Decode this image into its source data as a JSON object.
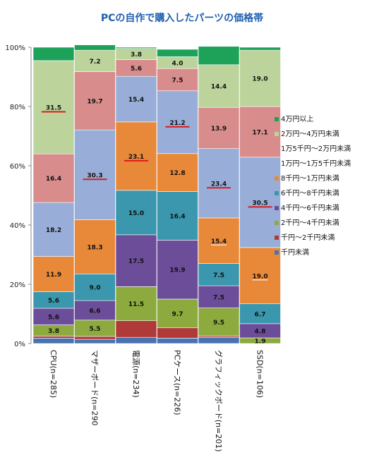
{
  "chart_data": {
    "type": "bar",
    "stacked": true,
    "percent": true,
    "title": "PCの自作で購入したパーツの価格帯",
    "ylim": [
      0,
      100
    ],
    "yticks": [
      "0%",
      "20%",
      "40%",
      "60%",
      "80%",
      "100%"
    ],
    "grid": false,
    "legend_position": "right",
    "categories": [
      "CPU(n=285)",
      "マザーボード(n=290",
      "電源(n=234)",
      "PCケース(n=226)",
      "グラフィックボード(n=201)",
      "SSD(n=106)"
    ],
    "series": [
      {
        "name": "千円未満",
        "color": "#4a72b0",
        "values": [
          1.8,
          1.4,
          2.1,
          1.8,
          2.0,
          0.0
        ]
      },
      {
        "name": "千円～2千円未満",
        "color": "#b03a38",
        "values": [
          0.7,
          1.0,
          5.6,
          3.5,
          0.5,
          0.0
        ]
      },
      {
        "name": "2千円～4千円未満",
        "color": "#8caa3e",
        "values": [
          3.8,
          5.5,
          11.5,
          9.7,
          9.5,
          1.9
        ]
      },
      {
        "name": "4千円～6千円未満",
        "color": "#6c4d9a",
        "values": [
          5.6,
          6.6,
          17.5,
          19.9,
          7.5,
          4.8
        ]
      },
      {
        "name": "6千円～8千円未満",
        "color": "#3a97ad",
        "values": [
          5.6,
          9.0,
          15.0,
          16.4,
          7.5,
          6.7
        ]
      },
      {
        "name": "8千円～1万円未満",
        "color": "#e8893a",
        "values": [
          11.9,
          18.3,
          23.1,
          12.8,
          15.4,
          19.0
        ]
      },
      {
        "name": "1万円～1万5千円未満",
        "color": "#98aed8",
        "values": [
          18.2,
          30.3,
          15.4,
          21.2,
          23.4,
          30.5
        ]
      },
      {
        "name": "1万5千円～2万円未満",
        "color": "#d88c8c",
        "values": [
          16.4,
          19.7,
          5.6,
          7.5,
          13.9,
          17.1
        ]
      },
      {
        "name": "2万円～4万円未満",
        "color": "#bcd49c",
        "values": [
          31.5,
          7.2,
          3.8,
          4.0,
          14.4,
          19.0
        ]
      },
      {
        "name": "4万円以上",
        "color": "#1ea25a",
        "values": [
          4.5,
          1.8,
          0.4,
          2.5,
          6.2,
          1.0
        ]
      }
    ],
    "labels_shown": [
      [
        null,
        null,
        "3.8",
        "5.6",
        "5.6",
        "11.9",
        "18.2",
        "16.4",
        "31.5",
        null
      ],
      [
        null,
        null,
        "5.5",
        "6.6",
        "9.0",
        "18.3",
        "30.3",
        "19.7",
        "7.2",
        null
      ],
      [
        null,
        null,
        "11.5",
        "17.5",
        "15.0",
        "23.1",
        "15.4",
        "5.6",
        "3.8",
        null
      ],
      [
        null,
        null,
        "9.7",
        "19.9",
        "16.4",
        "12.8",
        "21.2",
        "7.5",
        "4.0",
        null
      ],
      [
        null,
        null,
        "9.5",
        "7.5",
        "7.5",
        "15.4",
        "23.4",
        "13.9",
        "14.4",
        null
      ],
      [
        null,
        null,
        "1.9",
        "4.8",
        "6.7",
        "19.0",
        "30.5",
        "17.1",
        "19.0",
        null
      ]
    ],
    "highlight": [
      {
        "cat": 0,
        "series": 8,
        "style": "red-line"
      },
      {
        "cat": 1,
        "series": 6,
        "style": "red-line"
      },
      {
        "cat": 2,
        "series": 5,
        "style": "red-line"
      },
      {
        "cat": 3,
        "series": 6,
        "style": "red-line"
      },
      {
        "cat": 4,
        "series": 6,
        "style": "red-line"
      },
      {
        "cat": 4,
        "series": 5,
        "style": "underline"
      },
      {
        "cat": 5,
        "series": 6,
        "style": "red-line"
      },
      {
        "cat": 5,
        "series": 5,
        "style": "underline"
      }
    ]
  }
}
